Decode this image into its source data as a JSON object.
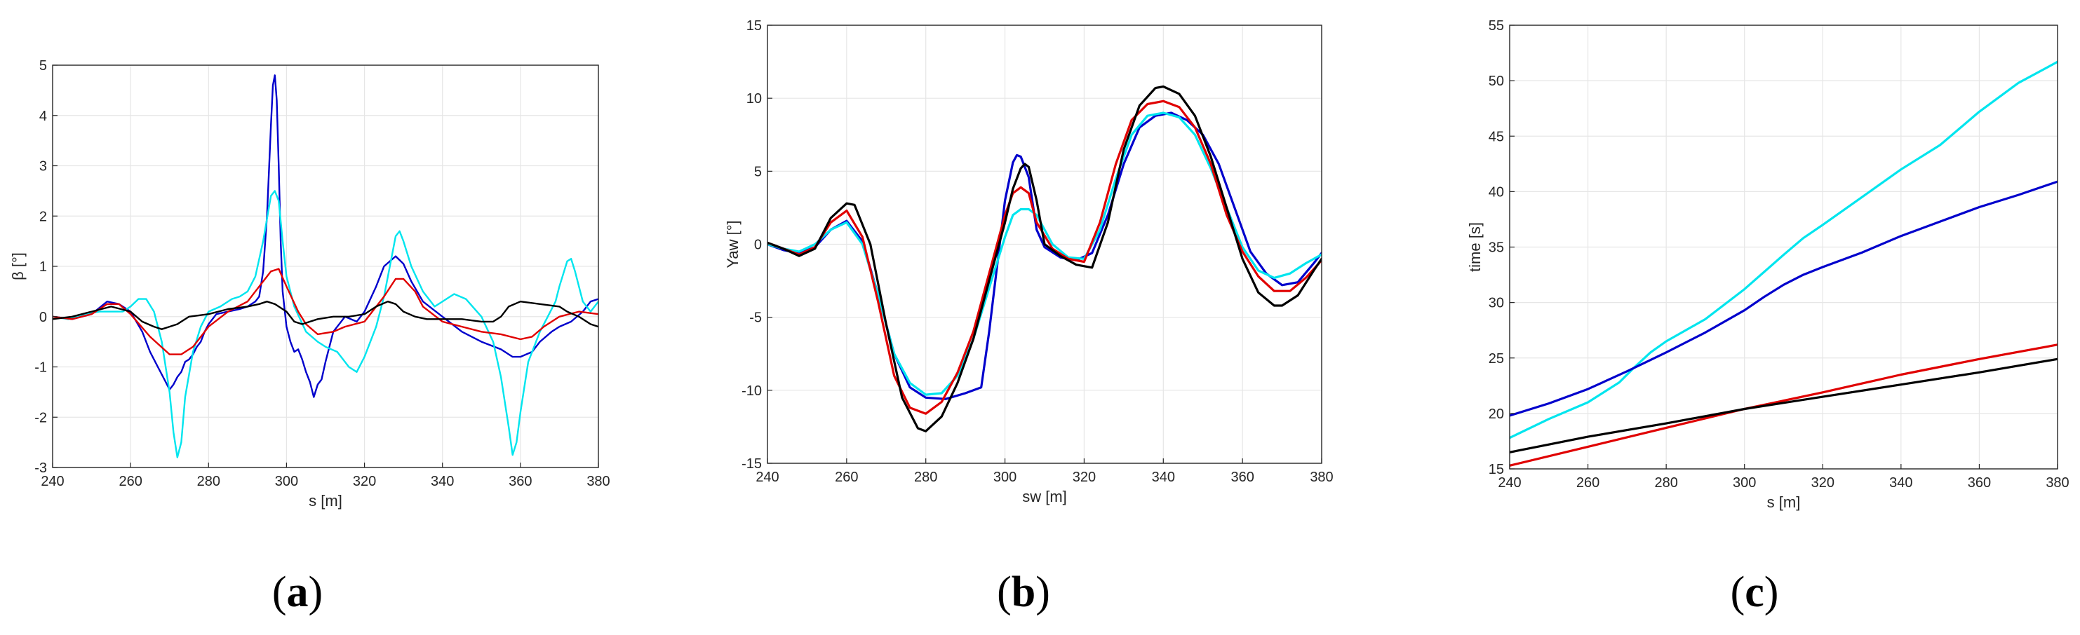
{
  "chart_data": [
    {
      "type": "line",
      "panel": "a",
      "caption_letter": "a",
      "xlabel": "s [m]",
      "ylabel": "β [°]",
      "xlim": [
        240,
        380
      ],
      "ylim": [
        -3,
        5
      ],
      "xticks": [
        240,
        260,
        280,
        300,
        320,
        340,
        360,
        380
      ],
      "yticks": [
        -3,
        -2,
        -1,
        0,
        1,
        2,
        3,
        4,
        5
      ],
      "grid": true,
      "series": [
        {
          "color": "#0000cc",
          "width": 2.4,
          "x": [
            240,
            245,
            250,
            254,
            257,
            260,
            263,
            265,
            267,
            269,
            270,
            271,
            272,
            273,
            274,
            275,
            276,
            277,
            278,
            279,
            280,
            282,
            285,
            288,
            290,
            292,
            293,
            294,
            295,
            296,
            296.5,
            297,
            297.5,
            298,
            298.5,
            299,
            300,
            301,
            302,
            303,
            304,
            305,
            306,
            307,
            308,
            309,
            310,
            312,
            315,
            318,
            320,
            323,
            325,
            328,
            330,
            332,
            335,
            340,
            345,
            350,
            355,
            358,
            360,
            363,
            365,
            368,
            370,
            373,
            376,
            378,
            380
          ],
          "y": [
            0,
            -0.05,
            0.05,
            0.3,
            0.25,
            0.1,
            -0.3,
            -0.7,
            -1.0,
            -1.3,
            -1.45,
            -1.35,
            -1.2,
            -1.1,
            -0.9,
            -0.85,
            -0.75,
            -0.6,
            -0.5,
            -0.3,
            -0.15,
            0.05,
            0.1,
            0.15,
            0.2,
            0.3,
            0.4,
            0.9,
            2.0,
            3.8,
            4.6,
            4.8,
            4.3,
            3.0,
            1.5,
            0.5,
            -0.2,
            -0.5,
            -0.7,
            -0.65,
            -0.85,
            -1.1,
            -1.3,
            -1.6,
            -1.35,
            -1.25,
            -0.9,
            -0.3,
            0.0,
            -0.1,
            0.1,
            0.6,
            1.0,
            1.2,
            1.05,
            0.7,
            0.3,
            0.0,
            -0.3,
            -0.5,
            -0.65,
            -0.8,
            -0.8,
            -0.7,
            -0.5,
            -0.3,
            -0.2,
            -0.1,
            0.1,
            0.3,
            0.35
          ]
        },
        {
          "color": "#00e5ee",
          "width": 2.4,
          "x": [
            240,
            244,
            248,
            252,
            256,
            258,
            260,
            262,
            264,
            266,
            268,
            270,
            271,
            272,
            273,
            274,
            276,
            278,
            280,
            283,
            286,
            288,
            290,
            292,
            294,
            296,
            297,
            298,
            299,
            300,
            302,
            305,
            308,
            310,
            313,
            316,
            318,
            320,
            323,
            325,
            327,
            328,
            329,
            330,
            332,
            335,
            338,
            340,
            343,
            346,
            350,
            353,
            355,
            357,
            358,
            359,
            360,
            362,
            365,
            367,
            369,
            370,
            372,
            373,
            374,
            376,
            378,
            380
          ],
          "y": [
            0,
            -0.05,
            0.05,
            0.1,
            0.1,
            0.1,
            0.2,
            0.35,
            0.35,
            0.1,
            -0.5,
            -1.5,
            -2.3,
            -2.8,
            -2.5,
            -1.6,
            -0.7,
            -0.2,
            0.1,
            0.2,
            0.35,
            0.4,
            0.5,
            0.8,
            1.5,
            2.4,
            2.5,
            2.3,
            1.5,
            0.8,
            0.2,
            -0.3,
            -0.5,
            -0.6,
            -0.7,
            -1.0,
            -1.1,
            -0.8,
            -0.2,
            0.4,
            1.2,
            1.6,
            1.7,
            1.5,
            1.0,
            0.5,
            0.2,
            0.3,
            0.45,
            0.35,
            0.0,
            -0.5,
            -1.2,
            -2.2,
            -2.75,
            -2.5,
            -1.9,
            -0.9,
            -0.3,
            0.0,
            0.3,
            0.6,
            1.1,
            1.15,
            0.9,
            0.3,
            0.1,
            0.3
          ]
        },
        {
          "color": "#e00000",
          "width": 2.4,
          "x": [
            240,
            245,
            250,
            254,
            257,
            260,
            265,
            270,
            273,
            276,
            280,
            285,
            290,
            293,
            296,
            298,
            300,
            303,
            305,
            308,
            312,
            315,
            320,
            325,
            328,
            330,
            333,
            335,
            340,
            345,
            350,
            355,
            360,
            363,
            366,
            370,
            375,
            380
          ],
          "y": [
            0,
            -0.05,
            0.05,
            0.25,
            0.25,
            0.05,
            -0.4,
            -0.75,
            -0.75,
            -0.6,
            -0.2,
            0.1,
            0.3,
            0.6,
            0.9,
            0.95,
            0.6,
            0.1,
            -0.15,
            -0.35,
            -0.3,
            -0.2,
            -0.1,
            0.4,
            0.75,
            0.75,
            0.5,
            0.2,
            -0.1,
            -0.2,
            -0.3,
            -0.35,
            -0.45,
            -0.4,
            -0.2,
            0.0,
            0.1,
            0.05
          ]
        },
        {
          "color": "#000000",
          "width": 2.4,
          "x": [
            240,
            245,
            250,
            255,
            260,
            263,
            266,
            268,
            270,
            272,
            275,
            280,
            285,
            290,
            293,
            295,
            297,
            300,
            302,
            304,
            306,
            308,
            312,
            316,
            320,
            323,
            326,
            328,
            330,
            333,
            336,
            340,
            345,
            350,
            353,
            355,
            357,
            360,
            365,
            370,
            372,
            375,
            378,
            380
          ],
          "y": [
            -0.05,
            0.0,
            0.1,
            0.2,
            0.1,
            -0.1,
            -0.2,
            -0.25,
            -0.2,
            -0.15,
            0.0,
            0.05,
            0.15,
            0.2,
            0.25,
            0.3,
            0.25,
            0.1,
            -0.1,
            -0.15,
            -0.1,
            -0.05,
            0.0,
            0.0,
            0.05,
            0.2,
            0.3,
            0.25,
            0.1,
            0.0,
            -0.05,
            -0.05,
            -0.05,
            -0.1,
            -0.1,
            0.0,
            0.2,
            0.3,
            0.25,
            0.2,
            0.1,
            0.0,
            -0.15,
            -0.2
          ]
        }
      ]
    },
    {
      "type": "line",
      "panel": "b",
      "caption_letter": "b",
      "xlabel": "sw [m]",
      "ylabel": "Yaw [°]",
      "xlim": [
        240,
        380
      ],
      "ylim": [
        -15,
        15
      ],
      "xticks": [
        240,
        260,
        280,
        300,
        320,
        340,
        360,
        380
      ],
      "yticks": [
        -15,
        -10,
        -5,
        0,
        5,
        10,
        15
      ],
      "grid": true,
      "series": [
        {
          "color": "#0000cc",
          "width": 3.2,
          "x": [
            240,
            244,
            248,
            252,
            256,
            260,
            264,
            268,
            272,
            276,
            280,
            285,
            290,
            294,
            296,
            298,
            300,
            302,
            303,
            304,
            306,
            308,
            310,
            314,
            318,
            322,
            326,
            330,
            334,
            338,
            342,
            346,
            350,
            354,
            358,
            362,
            366,
            370,
            374,
            378,
            380
          ],
          "y": [
            0,
            -0.4,
            -0.6,
            -0.2,
            1.0,
            1.6,
            0.2,
            -3.5,
            -7.5,
            -9.8,
            -10.5,
            -10.6,
            -10.2,
            -9.8,
            -6.0,
            -1.5,
            3.0,
            5.6,
            6.1,
            6.0,
            4.6,
            1.0,
            -0.2,
            -0.9,
            -1.1,
            -0.6,
            2.0,
            5.5,
            8.0,
            8.8,
            9.0,
            8.5,
            7.5,
            5.5,
            2.5,
            -0.5,
            -2.0,
            -2.8,
            -2.6,
            -1.3,
            -0.6
          ]
        },
        {
          "color": "#00e5ee",
          "width": 3.2,
          "x": [
            240,
            244,
            248,
            252,
            256,
            260,
            264,
            268,
            272,
            276,
            280,
            284,
            288,
            292,
            296,
            300,
            302,
            304,
            306,
            308,
            312,
            316,
            320,
            324,
            328,
            332,
            336,
            340,
            344,
            348,
            352,
            356,
            360,
            364,
            368,
            372,
            376,
            380
          ],
          "y": [
            0,
            -0.3,
            -0.5,
            0.0,
            1.0,
            1.5,
            0.0,
            -3.5,
            -7.5,
            -9.5,
            -10.3,
            -10.2,
            -9.0,
            -6.5,
            -3.0,
            0.5,
            2.0,
            2.4,
            2.4,
            2.0,
            0.0,
            -0.9,
            -1.0,
            1.0,
            4.5,
            7.5,
            8.8,
            9.0,
            8.7,
            7.5,
            5.2,
            2.5,
            -0.2,
            -1.8,
            -2.3,
            -2.0,
            -1.3,
            -0.7
          ]
        },
        {
          "color": "#e00000",
          "width": 3.2,
          "x": [
            240,
            244,
            248,
            252,
            256,
            260,
            264,
            268,
            272,
            276,
            280,
            284,
            288,
            292,
            296,
            300,
            302,
            304,
            306,
            308,
            312,
            316,
            320,
            324,
            328,
            332,
            336,
            340,
            344,
            348,
            352,
            356,
            360,
            364,
            368,
            372,
            376,
            380
          ],
          "y": [
            0.1,
            -0.3,
            -0.7,
            -0.2,
            1.5,
            2.3,
            0.5,
            -4.0,
            -9.0,
            -11.2,
            -11.6,
            -10.8,
            -8.8,
            -6.0,
            -2.0,
            2.0,
            3.5,
            3.9,
            3.5,
            1.5,
            -0.3,
            -1.0,
            -1.2,
            1.5,
            5.5,
            8.5,
            9.6,
            9.8,
            9.4,
            8.0,
            5.5,
            2.0,
            -0.5,
            -2.2,
            -3.2,
            -3.2,
            -2.3,
            -1.1
          ]
        },
        {
          "color": "#000000",
          "width": 3.2,
          "x": [
            240,
            244,
            248,
            252,
            256,
            260,
            262,
            266,
            270,
            274,
            278,
            280,
            284,
            288,
            292,
            296,
            300,
            302,
            304,
            305,
            306,
            308,
            310,
            314,
            318,
            322,
            326,
            330,
            334,
            338,
            340,
            344,
            348,
            352,
            356,
            360,
            364,
            368,
            370,
            374,
            378,
            380
          ],
          "y": [
            0.1,
            -0.3,
            -0.8,
            -0.3,
            1.8,
            2.8,
            2.7,
            0.0,
            -5.5,
            -10.5,
            -12.6,
            -12.8,
            -11.8,
            -9.5,
            -6.5,
            -2.5,
            1.5,
            3.8,
            5.2,
            5.5,
            5.3,
            3.0,
            0.0,
            -0.8,
            -1.4,
            -1.6,
            1.5,
            6.5,
            9.5,
            10.7,
            10.8,
            10.3,
            8.8,
            6.0,
            2.5,
            -1.0,
            -3.3,
            -4.2,
            -4.2,
            -3.5,
            -1.8,
            -1.0
          ]
        }
      ]
    },
    {
      "type": "line",
      "panel": "c",
      "caption_letter": "c",
      "xlabel": "s [m]",
      "ylabel": "time [s]",
      "xlim": [
        240,
        380
      ],
      "ylim": [
        15,
        55
      ],
      "xticks": [
        240,
        260,
        280,
        300,
        320,
        340,
        360,
        380
      ],
      "yticks": [
        15,
        20,
        25,
        30,
        35,
        40,
        45,
        50,
        55
      ],
      "grid": true,
      "series": [
        {
          "color": "#00e5ee",
          "width": 3.2,
          "x": [
            240,
            250,
            260,
            268,
            272,
            276,
            280,
            290,
            300,
            310,
            315,
            320,
            330,
            340,
            350,
            360,
            370,
            380
          ],
          "y": [
            17.8,
            19.5,
            21.0,
            22.8,
            24.2,
            25.5,
            26.5,
            28.5,
            31.2,
            34.3,
            35.8,
            37.0,
            39.5,
            42.0,
            44.2,
            47.2,
            49.8,
            51.7
          ]
        },
        {
          "color": "#0000cc",
          "width": 3.2,
          "x": [
            240,
            250,
            260,
            270,
            280,
            290,
            300,
            305,
            310,
            315,
            320,
            330,
            340,
            350,
            360,
            370,
            380
          ],
          "y": [
            19.8,
            20.9,
            22.2,
            23.8,
            25.5,
            27.3,
            29.3,
            30.5,
            31.6,
            32.5,
            33.2,
            34.5,
            36.0,
            37.3,
            38.6,
            39.7,
            40.9
          ]
        },
        {
          "color": "#e00000",
          "width": 3.2,
          "x": [
            240,
            260,
            280,
            300,
            320,
            340,
            360,
            380
          ],
          "y": [
            15.3,
            17.0,
            18.7,
            20.4,
            21.9,
            23.5,
            24.9,
            26.2
          ]
        },
        {
          "color": "#000000",
          "width": 3.2,
          "x": [
            240,
            260,
            280,
            300,
            320,
            340,
            360,
            380
          ],
          "y": [
            16.5,
            17.9,
            19.1,
            20.4,
            21.5,
            22.6,
            23.7,
            24.9
          ]
        }
      ]
    }
  ]
}
